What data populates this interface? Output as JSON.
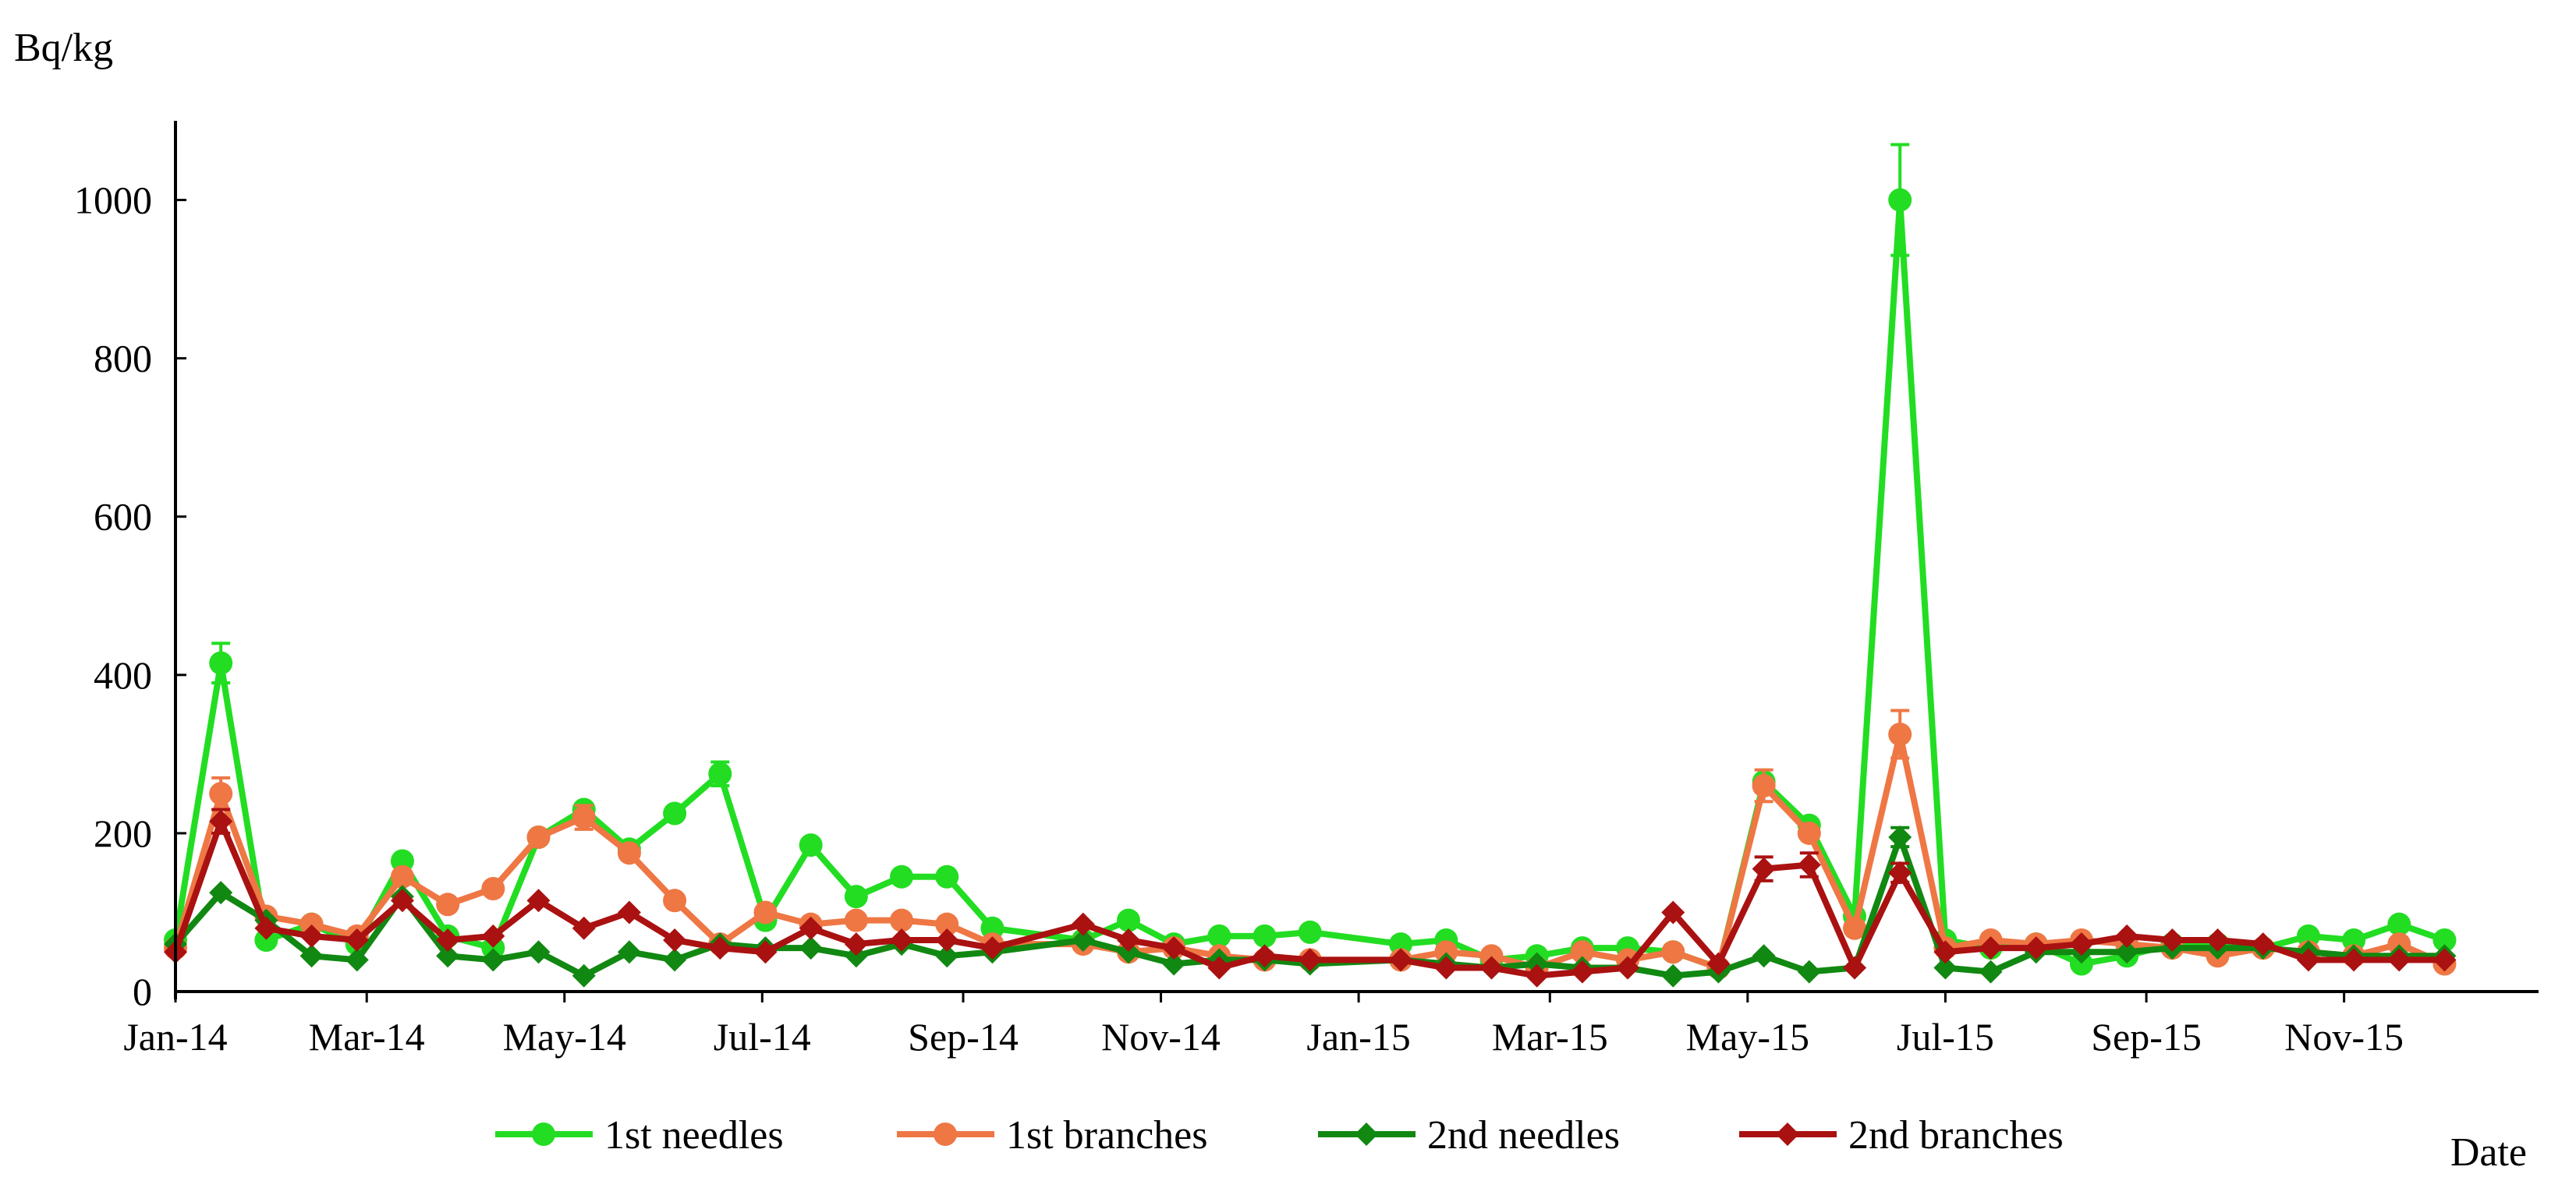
{
  "chart_data": {
    "type": "line",
    "ylabel": "Bq/kg",
    "xlabel": "Date",
    "ylim": [
      0,
      1100
    ],
    "yticks": [
      0,
      200,
      400,
      600,
      800,
      1000
    ],
    "x_start": "2014-01-01",
    "x_end": "2015-12-31",
    "xtick_labels": [
      "Jan-14",
      "Mar-14",
      "May-14",
      "Jul-14",
      "Sep-14",
      "Nov-14",
      "Jan-15",
      "Mar-15",
      "May-15",
      "Jul-15",
      "Sep-15",
      "Nov-15"
    ],
    "xtick_dates": [
      "2014-01-01",
      "2014-03-01",
      "2014-05-01",
      "2014-07-01",
      "2014-09-01",
      "2014-11-01",
      "2015-01-01",
      "2015-03-01",
      "2015-05-01",
      "2015-07-01",
      "2015-09-01",
      "2015-11-01"
    ],
    "legend_position": "bottom",
    "grid": false,
    "series": [
      {
        "name": "1st needles",
        "color": "#22dd22",
        "marker": "circle",
        "points": [
          [
            "2014-01-01",
            65
          ],
          [
            "2014-01-15",
            415
          ],
          [
            "2014-01-29",
            65
          ],
          [
            "2014-02-12",
            85
          ],
          [
            "2014-02-26",
            60
          ],
          [
            "2014-03-12",
            165
          ],
          [
            "2014-03-26",
            70
          ],
          [
            "2014-04-09",
            55
          ],
          [
            "2014-04-23",
            195
          ],
          [
            "2014-05-07",
            230
          ],
          [
            "2014-05-21",
            180
          ],
          [
            "2014-06-04",
            225
          ],
          [
            "2014-06-18",
            275
          ],
          [
            "2014-07-02",
            90
          ],
          [
            "2014-07-16",
            185
          ],
          [
            "2014-07-30",
            120
          ],
          [
            "2014-08-13",
            145
          ],
          [
            "2014-08-27",
            145
          ],
          [
            "2014-09-10",
            80
          ],
          [
            "2014-10-08",
            65
          ],
          [
            "2014-10-22",
            90
          ],
          [
            "2014-11-05",
            60
          ],
          [
            "2014-11-19",
            70
          ],
          [
            "2014-12-03",
            70
          ],
          [
            "2014-12-17",
            75
          ],
          [
            "2015-01-14",
            60
          ],
          [
            "2015-01-28",
            65
          ],
          [
            "2015-02-11",
            40
          ],
          [
            "2015-02-25",
            45
          ],
          [
            "2015-03-11",
            55
          ],
          [
            "2015-03-25",
            55
          ],
          [
            "2015-04-08",
            50
          ],
          [
            "2015-04-22",
            30
          ],
          [
            "2015-05-06",
            265
          ],
          [
            "2015-05-20",
            210
          ],
          [
            "2015-06-03",
            95
          ],
          [
            "2015-06-17",
            1000
          ],
          [
            "2015-07-01",
            65
          ],
          [
            "2015-07-15",
            55
          ],
          [
            "2015-07-29",
            60
          ],
          [
            "2015-08-12",
            35
          ],
          [
            "2015-08-26",
            45
          ],
          [
            "2015-09-09",
            60
          ],
          [
            "2015-09-23",
            60
          ],
          [
            "2015-10-07",
            55
          ],
          [
            "2015-10-21",
            70
          ],
          [
            "2015-11-04",
            65
          ],
          [
            "2015-11-18",
            85
          ],
          [
            "2015-12-02",
            65
          ]
        ],
        "errors": [
          [
            "2014-01-15",
            25
          ],
          [
            "2014-06-18",
            15
          ],
          [
            "2015-06-17",
            70
          ]
        ]
      },
      {
        "name": "1st branches",
        "color": "#ee7744",
        "marker": "circle",
        "points": [
          [
            "2014-01-01",
            55
          ],
          [
            "2014-01-15",
            250
          ],
          [
            "2014-01-29",
            95
          ],
          [
            "2014-02-12",
            85
          ],
          [
            "2014-02-26",
            70
          ],
          [
            "2014-03-12",
            145
          ],
          [
            "2014-03-26",
            110
          ],
          [
            "2014-04-09",
            130
          ],
          [
            "2014-04-23",
            195
          ],
          [
            "2014-05-07",
            220
          ],
          [
            "2014-05-21",
            175
          ],
          [
            "2014-06-04",
            115
          ],
          [
            "2014-06-18",
            60
          ],
          [
            "2014-07-02",
            100
          ],
          [
            "2014-07-16",
            85
          ],
          [
            "2014-07-30",
            90
          ],
          [
            "2014-08-13",
            90
          ],
          [
            "2014-08-27",
            85
          ],
          [
            "2014-09-10",
            60
          ],
          [
            "2014-10-08",
            60
          ],
          [
            "2014-10-22",
            50
          ],
          [
            "2014-11-05",
            55
          ],
          [
            "2014-11-19",
            45
          ],
          [
            "2014-12-03",
            40
          ],
          [
            "2014-12-17",
            40
          ],
          [
            "2015-01-14",
            40
          ],
          [
            "2015-01-28",
            50
          ],
          [
            "2015-02-11",
            45
          ],
          [
            "2015-02-25",
            30
          ],
          [
            "2015-03-11",
            50
          ],
          [
            "2015-03-25",
            40
          ],
          [
            "2015-04-08",
            50
          ],
          [
            "2015-04-22",
            30
          ],
          [
            "2015-05-06",
            260
          ],
          [
            "2015-05-20",
            200
          ],
          [
            "2015-06-03",
            80
          ],
          [
            "2015-06-17",
            325
          ],
          [
            "2015-07-01",
            55
          ],
          [
            "2015-07-15",
            65
          ],
          [
            "2015-07-29",
            60
          ],
          [
            "2015-08-12",
            65
          ],
          [
            "2015-08-26",
            60
          ],
          [
            "2015-09-09",
            55
          ],
          [
            "2015-09-23",
            45
          ],
          [
            "2015-10-07",
            55
          ],
          [
            "2015-10-21",
            50
          ],
          [
            "2015-11-04",
            45
          ],
          [
            "2015-11-18",
            60
          ],
          [
            "2015-12-02",
            35
          ]
        ],
        "errors": [
          [
            "2014-01-15",
            20
          ],
          [
            "2014-05-07",
            15
          ],
          [
            "2015-05-06",
            20
          ],
          [
            "2015-06-17",
            30
          ]
        ]
      },
      {
        "name": "2nd needles",
        "color": "#118811",
        "marker": "diamond",
        "points": [
          [
            "2014-01-01",
            60
          ],
          [
            "2014-01-15",
            125
          ],
          [
            "2014-01-29",
            90
          ],
          [
            "2014-02-12",
            45
          ],
          [
            "2014-02-26",
            40
          ],
          [
            "2014-03-12",
            120
          ],
          [
            "2014-03-26",
            45
          ],
          [
            "2014-04-09",
            40
          ],
          [
            "2014-04-23",
            50
          ],
          [
            "2014-05-07",
            20
          ],
          [
            "2014-05-21",
            50
          ],
          [
            "2014-06-04",
            40
          ],
          [
            "2014-06-18",
            60
          ],
          [
            "2014-07-02",
            55
          ],
          [
            "2014-07-16",
            55
          ],
          [
            "2014-07-30",
            45
          ],
          [
            "2014-08-13",
            60
          ],
          [
            "2014-08-27",
            45
          ],
          [
            "2014-09-10",
            50
          ],
          [
            "2014-10-08",
            65
          ],
          [
            "2014-10-22",
            50
          ],
          [
            "2014-11-05",
            35
          ],
          [
            "2014-11-19",
            40
          ],
          [
            "2014-12-03",
            40
          ],
          [
            "2014-12-17",
            35
          ],
          [
            "2015-01-14",
            40
          ],
          [
            "2015-01-28",
            35
          ],
          [
            "2015-02-11",
            30
          ],
          [
            "2015-02-25",
            35
          ],
          [
            "2015-03-11",
            30
          ],
          [
            "2015-03-25",
            30
          ],
          [
            "2015-04-08",
            20
          ],
          [
            "2015-04-22",
            25
          ],
          [
            "2015-05-06",
            45
          ],
          [
            "2015-05-20",
            25
          ],
          [
            "2015-06-03",
            30
          ],
          [
            "2015-06-17",
            195
          ],
          [
            "2015-07-01",
            30
          ],
          [
            "2015-07-15",
            25
          ],
          [
            "2015-07-29",
            50
          ],
          [
            "2015-08-12",
            50
          ],
          [
            "2015-08-26",
            50
          ],
          [
            "2015-09-09",
            55
          ],
          [
            "2015-09-23",
            55
          ],
          [
            "2015-10-07",
            55
          ],
          [
            "2015-10-21",
            50
          ],
          [
            "2015-11-04",
            45
          ],
          [
            "2015-11-18",
            45
          ],
          [
            "2015-12-02",
            45
          ]
        ],
        "errors": [
          [
            "2015-06-17",
            12
          ]
        ]
      },
      {
        "name": "2nd branches",
        "color": "#aa1111",
        "marker": "diamond",
        "points": [
          [
            "2014-01-01",
            50
          ],
          [
            "2014-01-15",
            215
          ],
          [
            "2014-01-29",
            80
          ],
          [
            "2014-02-12",
            70
          ],
          [
            "2014-02-26",
            65
          ],
          [
            "2014-03-12",
            115
          ],
          [
            "2014-03-26",
            65
          ],
          [
            "2014-04-09",
            70
          ],
          [
            "2014-04-23",
            115
          ],
          [
            "2014-05-07",
            80
          ],
          [
            "2014-05-21",
            100
          ],
          [
            "2014-06-04",
            65
          ],
          [
            "2014-06-18",
            55
          ],
          [
            "2014-07-02",
            50
          ],
          [
            "2014-07-16",
            80
          ],
          [
            "2014-07-30",
            60
          ],
          [
            "2014-08-13",
            65
          ],
          [
            "2014-08-27",
            65
          ],
          [
            "2014-09-10",
            55
          ],
          [
            "2014-10-08",
            85
          ],
          [
            "2014-10-22",
            65
          ],
          [
            "2014-11-05",
            55
          ],
          [
            "2014-11-19",
            30
          ],
          [
            "2014-12-03",
            45
          ],
          [
            "2014-12-17",
            40
          ],
          [
            "2015-01-14",
            40
          ],
          [
            "2015-01-28",
            30
          ],
          [
            "2015-02-11",
            30
          ],
          [
            "2015-02-25",
            20
          ],
          [
            "2015-03-11",
            25
          ],
          [
            "2015-03-25",
            30
          ],
          [
            "2015-04-08",
            100
          ],
          [
            "2015-04-22",
            35
          ],
          [
            "2015-05-06",
            155
          ],
          [
            "2015-05-20",
            160
          ],
          [
            "2015-06-03",
            30
          ],
          [
            "2015-06-17",
            150
          ],
          [
            "2015-07-01",
            50
          ],
          [
            "2015-07-15",
            55
          ],
          [
            "2015-07-29",
            55
          ],
          [
            "2015-08-12",
            60
          ],
          [
            "2015-08-26",
            70
          ],
          [
            "2015-09-09",
            65
          ],
          [
            "2015-09-23",
            65
          ],
          [
            "2015-10-07",
            60
          ],
          [
            "2015-10-21",
            40
          ],
          [
            "2015-11-04",
            40
          ],
          [
            "2015-11-18",
            40
          ],
          [
            "2015-12-02",
            40
          ]
        ],
        "errors": [
          [
            "2014-01-15",
            15
          ],
          [
            "2015-05-06",
            15
          ],
          [
            "2015-05-20",
            15
          ],
          [
            "2015-06-17",
            12
          ]
        ]
      }
    ]
  }
}
